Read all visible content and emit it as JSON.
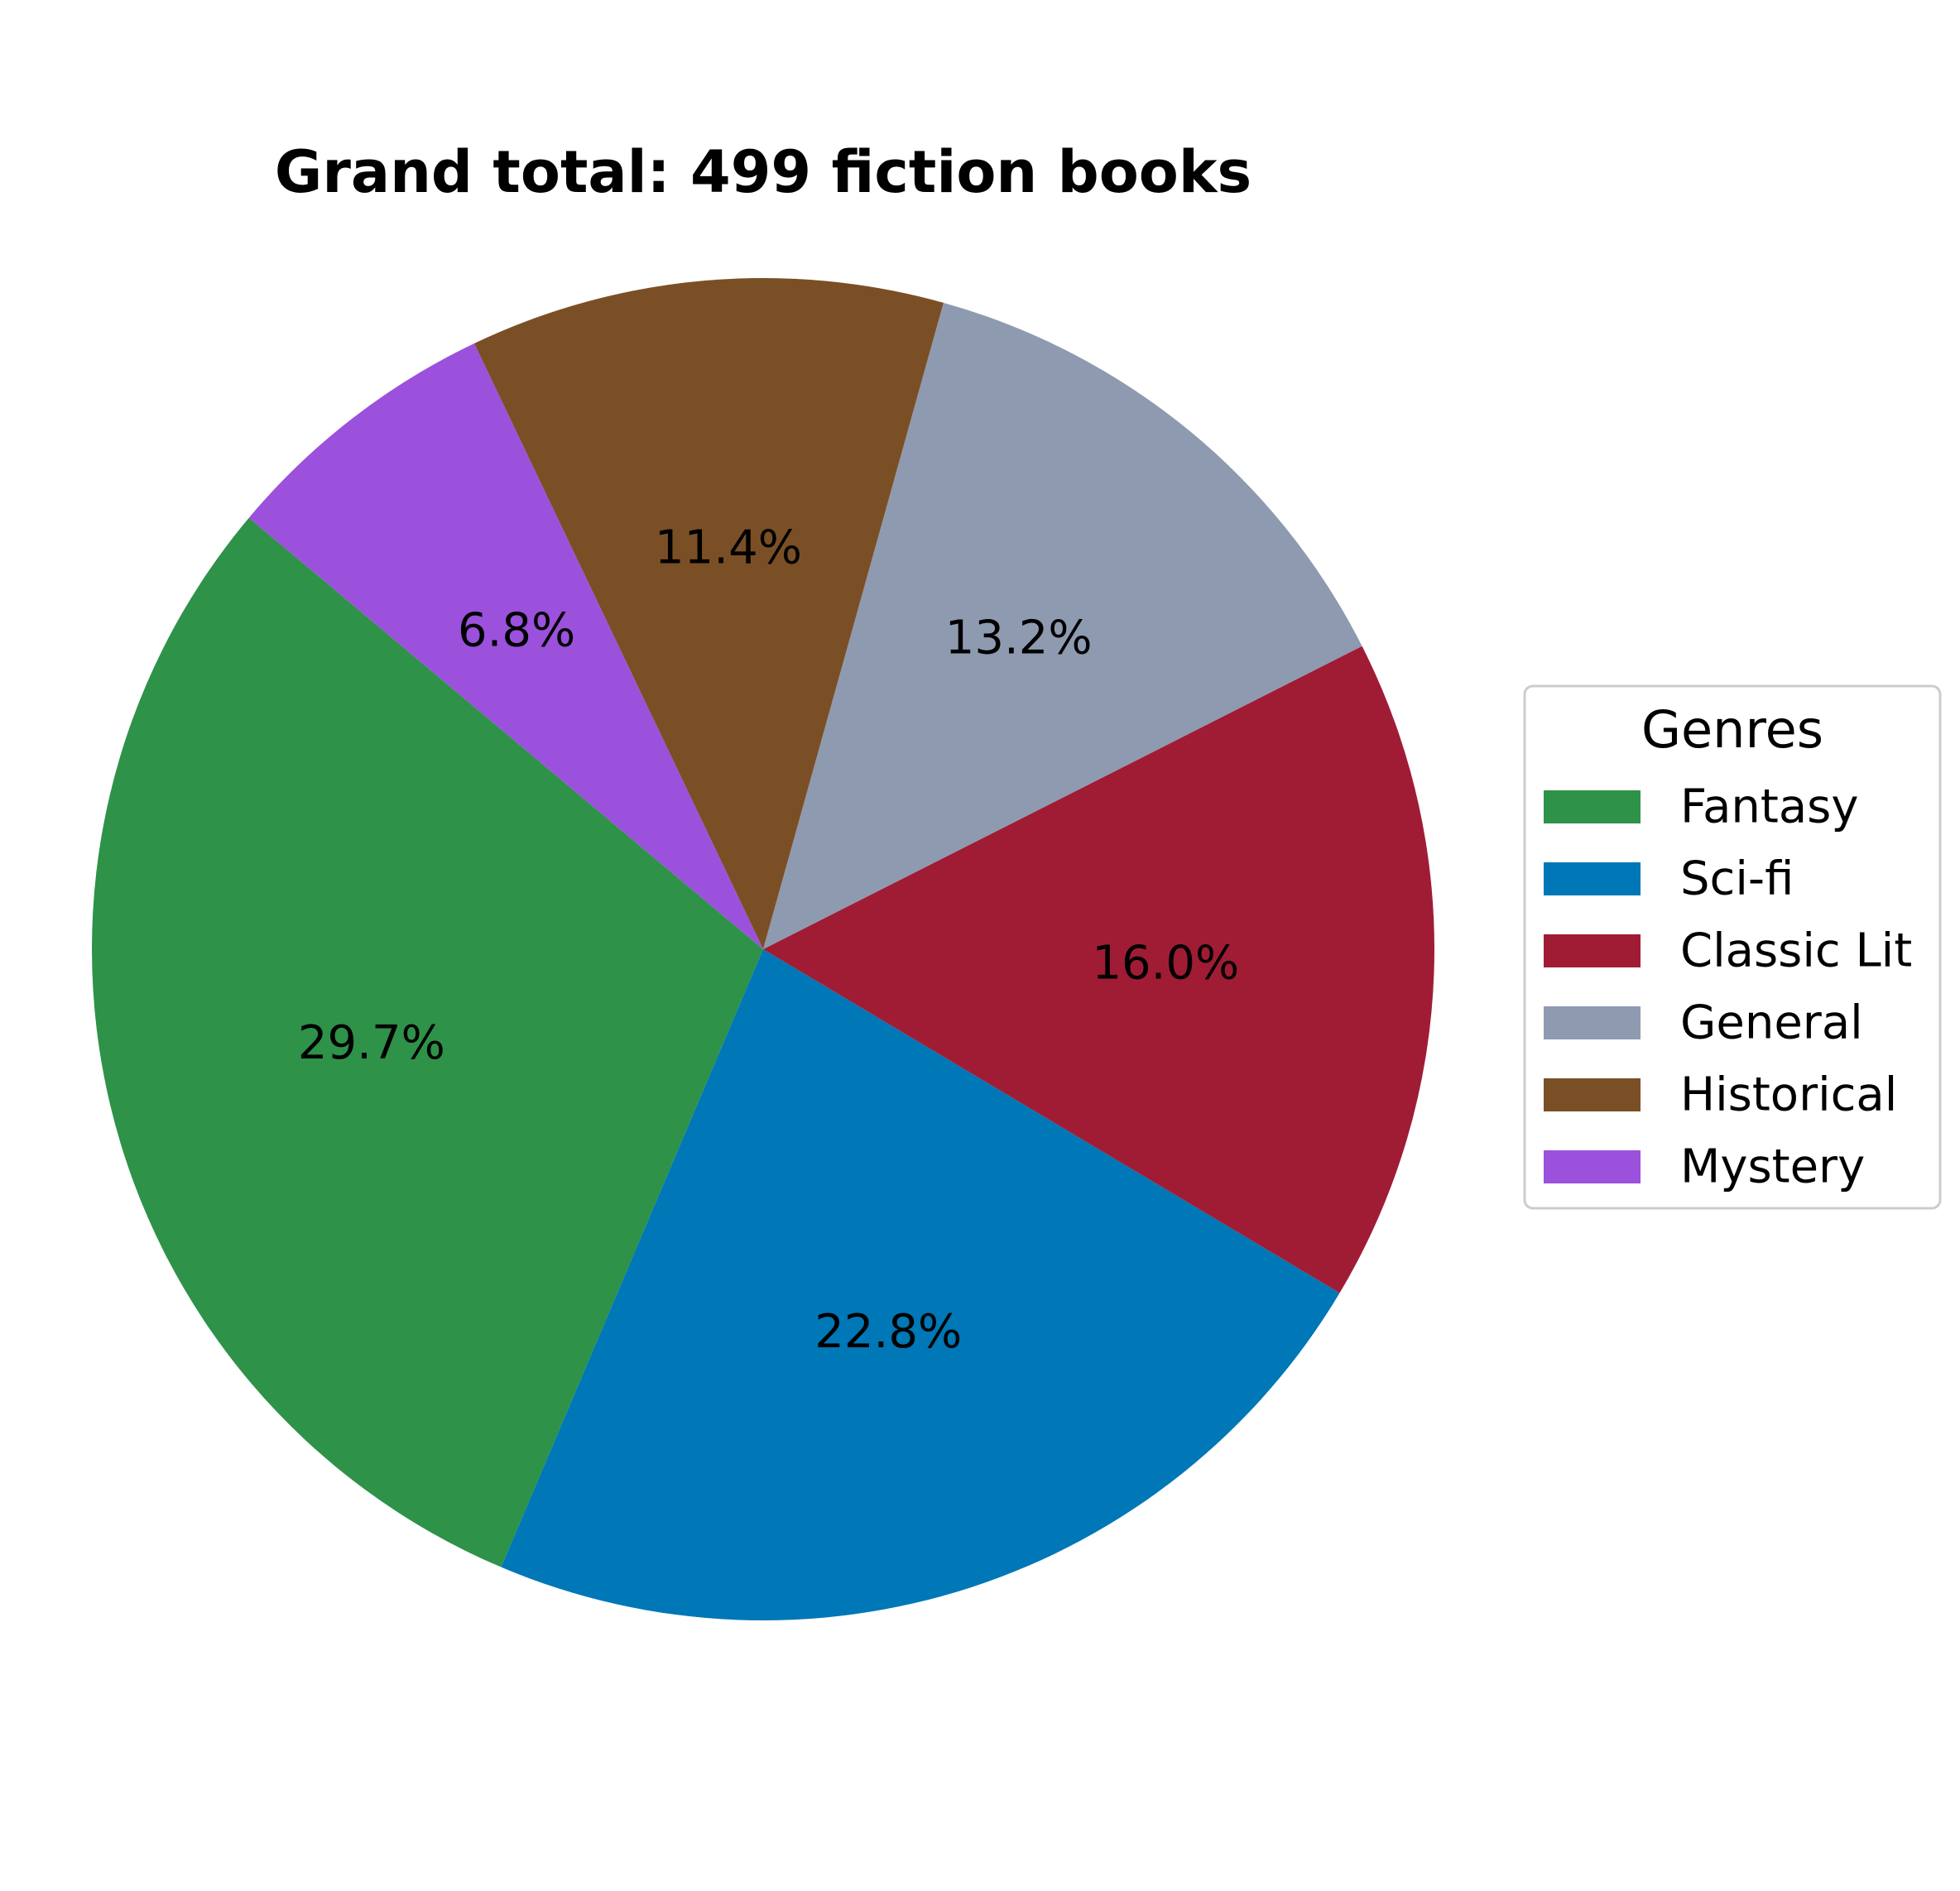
{
  "chart_data": {
    "type": "pie",
    "title": "Grand total: 499 fiction books",
    "categories": [
      "Fantasy",
      "Sci-fi",
      "Classic Lit",
      "General",
      "Historical",
      "Mystery"
    ],
    "values": [
      29.7,
      22.8,
      16.0,
      13.2,
      11.4,
      6.8
    ],
    "value_labels": [
      "29.7%",
      "22.8%",
      "16.0%",
      "13.2%",
      "11.4%",
      "6.8%"
    ],
    "colors": [
      "#2e9249",
      "#0077b6",
      "#a01c34",
      "#8e9ab0",
      "#7b4f25",
      "#9b51dc"
    ],
    "legend": {
      "title": "Genres",
      "placement": "center-right"
    }
  }
}
